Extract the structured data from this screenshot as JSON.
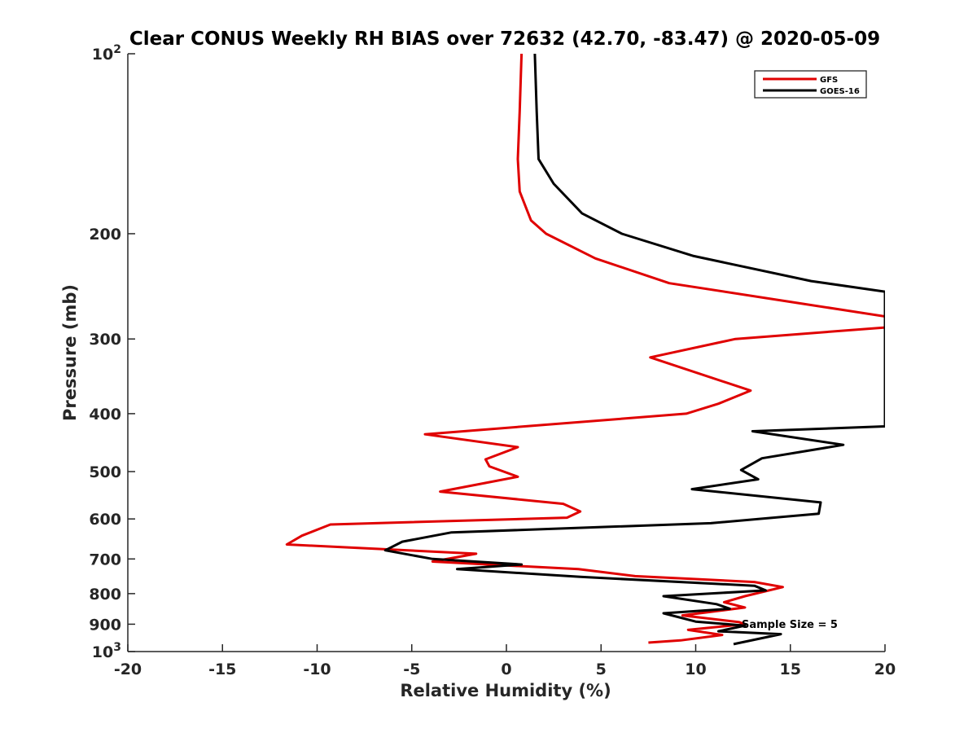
{
  "chart_data": {
    "type": "line",
    "title": "Clear CONUS Weekly RH BIAS over 72632 (42.70, -83.47) @ 2020-05-09",
    "xlabel": "Relative Humidity (%)",
    "ylabel": "Pressure (mb)",
    "xlim": [
      -20,
      20
    ],
    "ylim": [
      100,
      1000
    ],
    "y_scale": "log",
    "y_reversed": true,
    "grid": false,
    "legend_position": "top-right",
    "x_ticks": [
      -20,
      -15,
      -10,
      -5,
      0,
      5,
      10,
      15,
      20
    ],
    "x_tick_labels": [
      "-20",
      "-15",
      "-10",
      "-5",
      "0",
      "5",
      "10",
      "15",
      "20"
    ],
    "y_ticks": [
      100,
      200,
      300,
      400,
      500,
      600,
      700,
      800,
      900,
      1000
    ],
    "y_tick_labels": [
      "10^2",
      "200",
      "300",
      "400",
      "500",
      "600",
      "700",
      "800",
      "900",
      "10^3"
    ],
    "annotation": "Sample Size = 5",
    "series": [
      {
        "name": "GFS",
        "color": "#e00000",
        "points": [
          [
            0.8,
            100
          ],
          [
            0.7,
            125
          ],
          [
            0.6,
            150
          ],
          [
            0.7,
            170
          ],
          [
            1.3,
            190
          ],
          [
            2.1,
            200
          ],
          [
            4.7,
            220
          ],
          [
            8.6,
            242
          ],
          [
            15.0,
            260
          ],
          [
            20.0,
            275
          ],
          [
            20.0,
            287
          ],
          [
            12.1,
            300
          ],
          [
            7.6,
            322
          ],
          [
            12.9,
            366
          ],
          [
            11.2,
            385
          ],
          [
            9.5,
            400
          ],
          [
            -4.3,
            433
          ],
          [
            0.6,
            455
          ],
          [
            -1.1,
            477
          ],
          [
            -0.9,
            490
          ],
          [
            0.6,
            510
          ],
          [
            -3.5,
            540
          ],
          [
            3.0,
            566
          ],
          [
            3.9,
            583
          ],
          [
            3.2,
            597
          ],
          [
            -9.3,
            613
          ],
          [
            -10.8,
            640
          ],
          [
            -11.6,
            662
          ],
          [
            -1.6,
            686
          ],
          [
            -3.9,
            707
          ],
          [
            3.8,
            728
          ],
          [
            6.8,
            748
          ],
          [
            13.1,
            765
          ],
          [
            14.6,
            780
          ],
          [
            12.6,
            808
          ],
          [
            11.5,
            827
          ],
          [
            12.6,
            844
          ],
          [
            9.3,
            870
          ],
          [
            12.3,
            893
          ],
          [
            12.6,
            900
          ],
          [
            9.6,
            920
          ],
          [
            11.4,
            938
          ],
          [
            9.2,
            958
          ],
          [
            7.5,
            966
          ]
        ]
      },
      {
        "name": "GOES-16",
        "color": "#000000",
        "points": [
          [
            1.5,
            100
          ],
          [
            1.6,
            125
          ],
          [
            1.7,
            150
          ],
          [
            2.5,
            165
          ],
          [
            4.0,
            185
          ],
          [
            6.1,
            200
          ],
          [
            9.9,
            218
          ],
          [
            16.1,
            240
          ],
          [
            20.0,
            250
          ],
          [
            20.0,
            420
          ],
          [
            13.0,
            428
          ],
          [
            17.8,
            451
          ],
          [
            13.5,
            475
          ],
          [
            12.4,
            497
          ],
          [
            13.3,
            515
          ],
          [
            9.8,
            535
          ],
          [
            16.6,
            563
          ],
          [
            16.5,
            588
          ],
          [
            10.8,
            610
          ],
          [
            -2.9,
            632
          ],
          [
            -5.5,
            655
          ],
          [
            -6.4,
            677
          ],
          [
            -3.9,
            700
          ],
          [
            0.8,
            715
          ],
          [
            -2.6,
            728
          ],
          [
            3.9,
            750
          ],
          [
            13.1,
            776
          ],
          [
            13.7,
            790
          ],
          [
            8.3,
            808
          ],
          [
            11.1,
            833
          ],
          [
            11.8,
            848
          ],
          [
            8.3,
            863
          ],
          [
            10.0,
            891
          ],
          [
            12.6,
            905
          ],
          [
            11.2,
            925
          ],
          [
            14.5,
            935
          ],
          [
            12.0,
            972
          ]
        ]
      }
    ]
  }
}
